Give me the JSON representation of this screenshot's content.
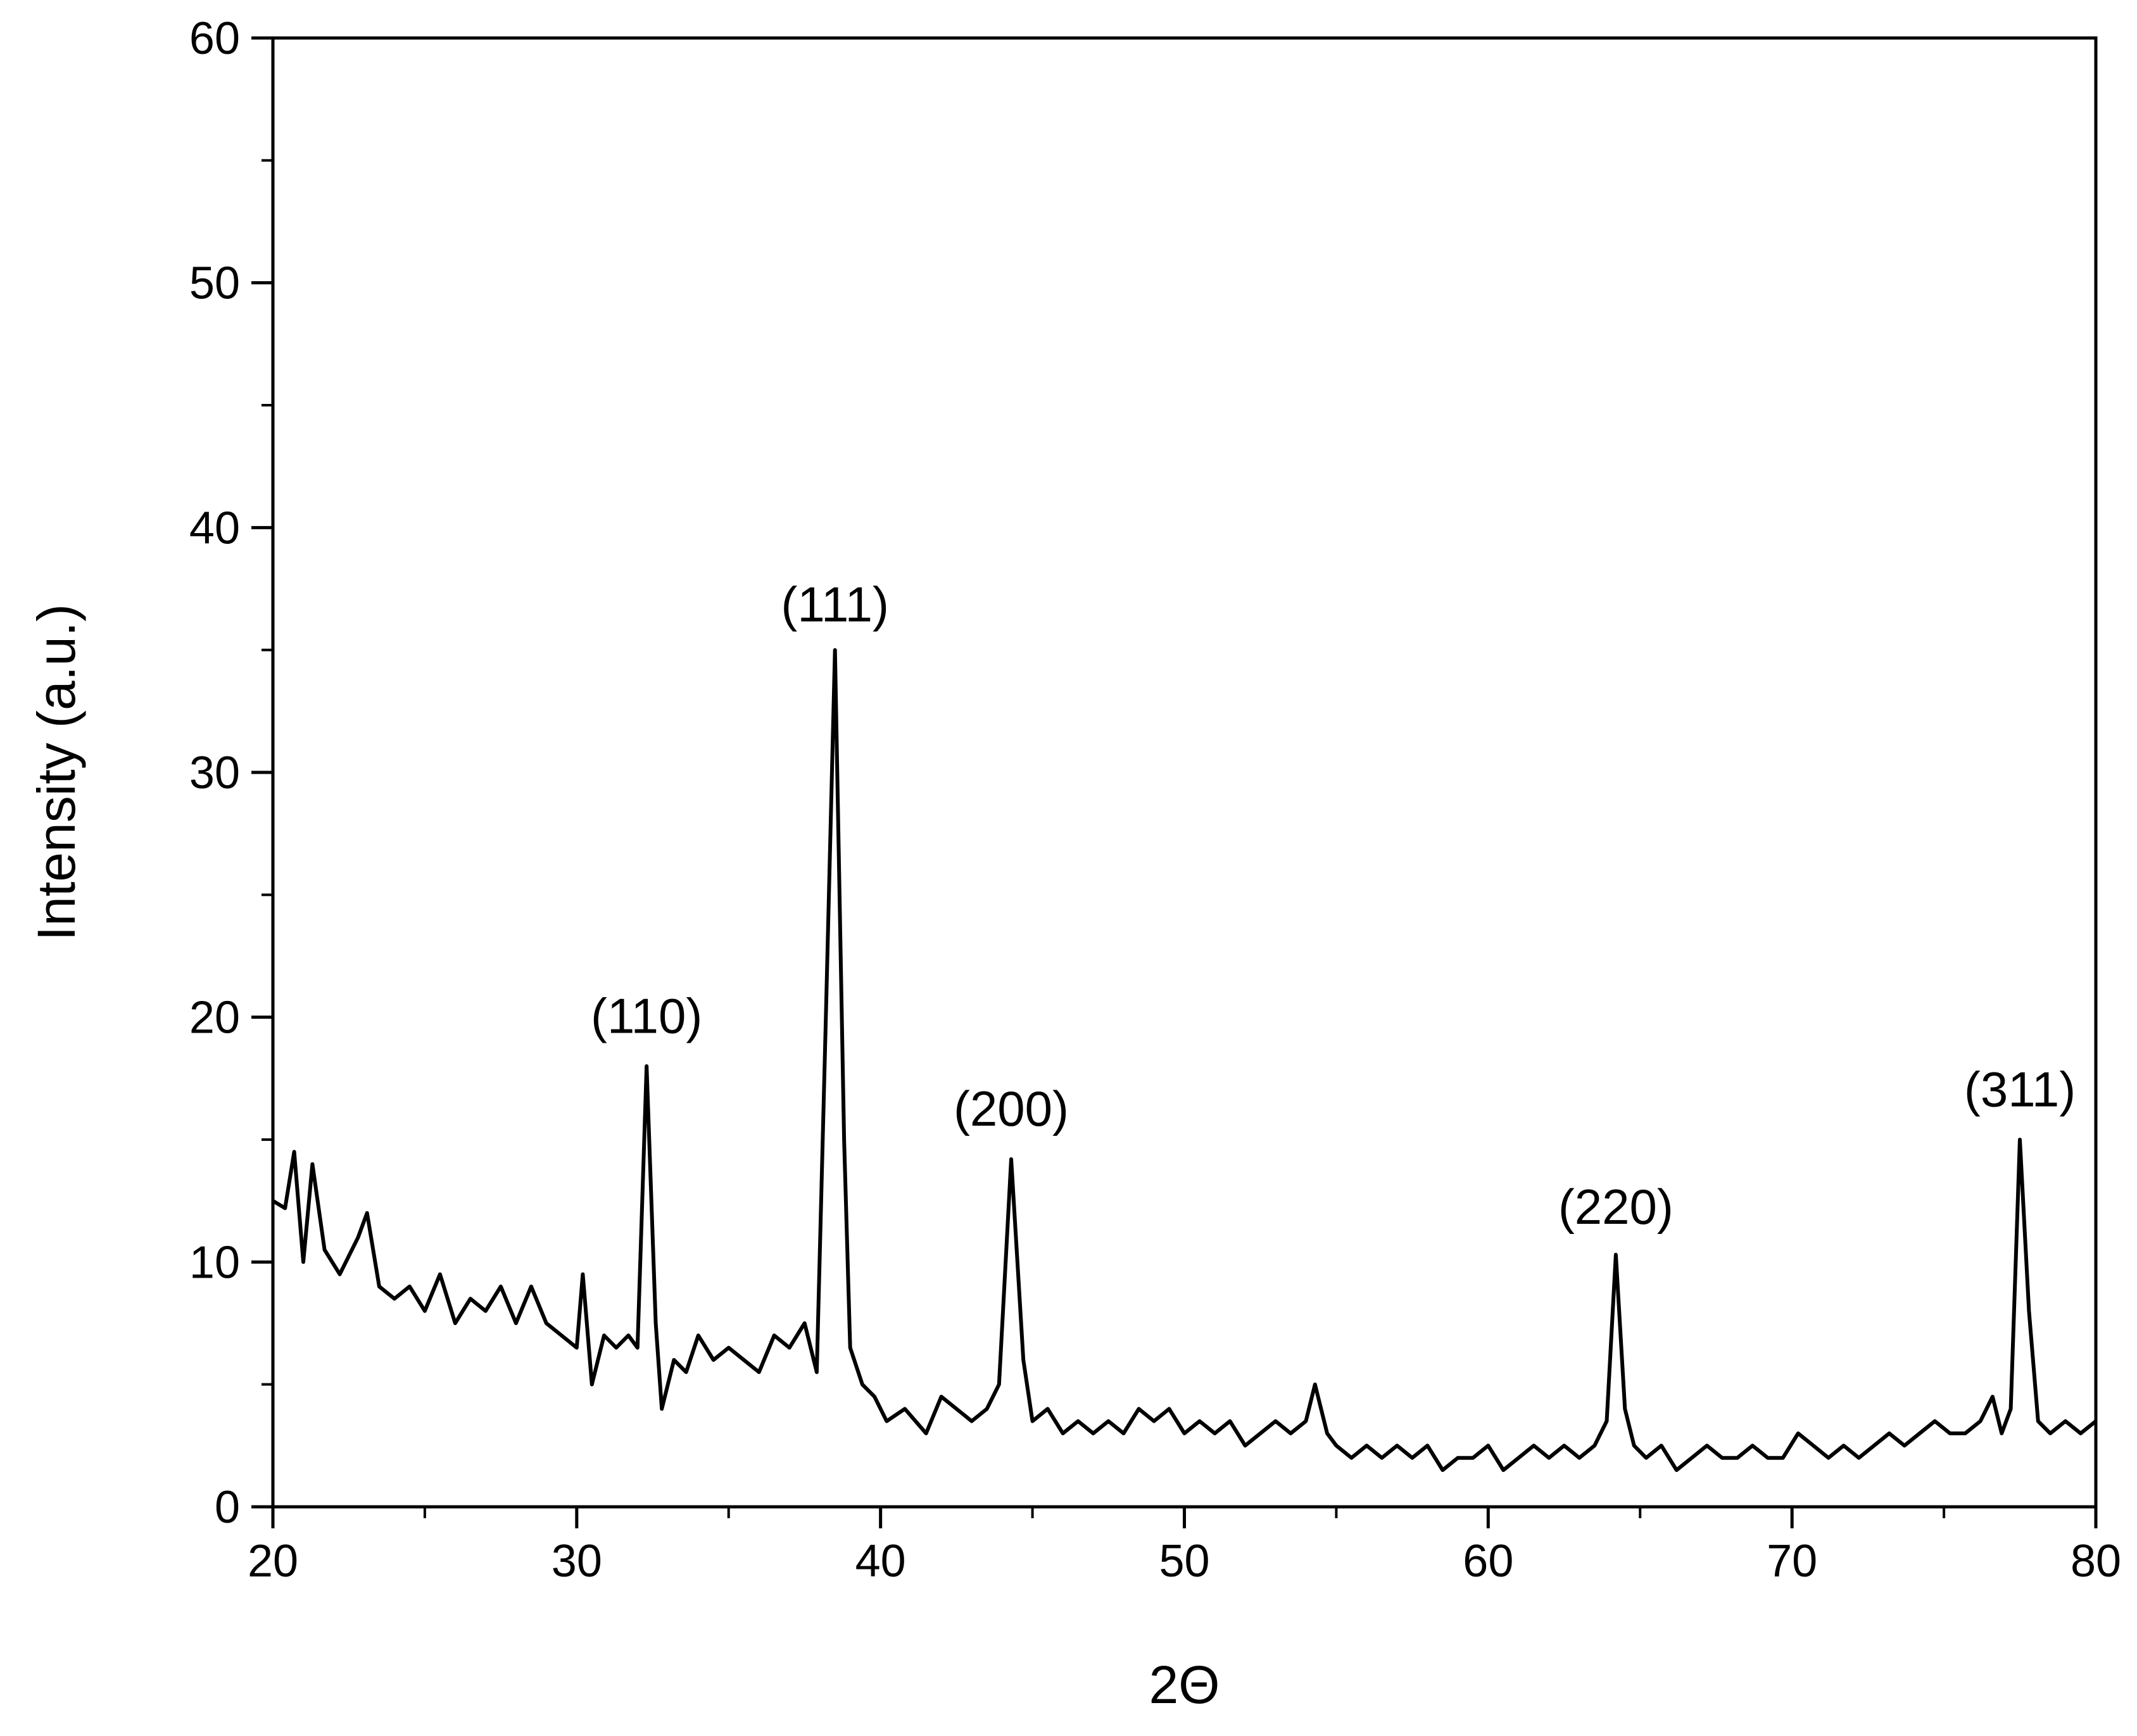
{
  "chart_data": {
    "type": "line",
    "title": "",
    "xlabel": "2Θ",
    "ylabel": "Intensity (a.u.)",
    "xlim": [
      20,
      80
    ],
    "ylim": [
      0,
      60
    ],
    "x_ticks": [
      "20",
      "30",
      "40",
      "50",
      "60",
      "70",
      "80"
    ],
    "y_ticks": [
      "0",
      "10",
      "20",
      "30",
      "40",
      "50",
      "60"
    ],
    "grid": false,
    "legend": "none",
    "line_color": "#000000",
    "series": [
      {
        "x": [
          20,
          20.4,
          20.7,
          21.0,
          21.3,
          21.7,
          22.2,
          22.8,
          23.1,
          23.5,
          24.0,
          24.5,
          25.0,
          25.5,
          26.0,
          26.5,
          27.0,
          27.5,
          28.0,
          28.5,
          29.0,
          29.5,
          30.0,
          30.2,
          30.5,
          30.9,
          31.3,
          31.7,
          32.0,
          32.3,
          32.6,
          32.8,
          33.2,
          33.6,
          34.0,
          34.5,
          35.0,
          35.5,
          36.0,
          36.5,
          37.0,
          37.5,
          37.9,
          38.2,
          38.5,
          38.8,
          39.0,
          39.4,
          39.8,
          40.2,
          40.8,
          41.5,
          42.0,
          42.5,
          43.0,
          43.5,
          43.9,
          44.3,
          44.7,
          45.0,
          45.5,
          46.0,
          46.5,
          47.0,
          47.5,
          48.0,
          48.5,
          49.0,
          49.5,
          50.0,
          50.5,
          51.0,
          51.5,
          52.0,
          52.5,
          53.0,
          53.5,
          54.0,
          54.3,
          54.7,
          55.0,
          55.5,
          56.0,
          56.5,
          57.0,
          57.5,
          58.0,
          58.5,
          59.0,
          59.5,
          60.0,
          60.5,
          61.0,
          61.5,
          62.0,
          62.5,
          63.0,
          63.5,
          63.9,
          64.2,
          64.5,
          64.8,
          65.2,
          65.7,
          66.2,
          66.7,
          67.2,
          67.7,
          68.2,
          68.7,
          69.2,
          69.7,
          70.2,
          70.7,
          71.2,
          71.7,
          72.2,
          72.7,
          73.2,
          73.7,
          74.2,
          74.7,
          75.2,
          75.7,
          76.2,
          76.6,
          76.9,
          77.2,
          77.5,
          77.8,
          78.1,
          78.5,
          79.0,
          79.5,
          80.0
        ],
        "y": [
          12.5,
          12.2,
          14.5,
          10.0,
          14.0,
          10.5,
          9.5,
          11.0,
          12.0,
          9.0,
          8.5,
          9.0,
          8.0,
          9.5,
          7.5,
          8.5,
          8.0,
          9.0,
          7.5,
          9.0,
          7.5,
          7.0,
          6.5,
          9.5,
          5.0,
          7.0,
          6.5,
          7.0,
          6.5,
          18.0,
          7.5,
          4.0,
          6.0,
          5.5,
          7.0,
          6.0,
          6.5,
          6.0,
          5.5,
          7.0,
          6.5,
          7.5,
          5.5,
          20.0,
          35.0,
          15.0,
          6.5,
          5.0,
          4.5,
          3.5,
          4.0,
          3.0,
          4.5,
          4.0,
          3.5,
          4.0,
          5.0,
          14.2,
          6.0,
          3.5,
          4.0,
          3.0,
          3.5,
          3.0,
          3.5,
          3.0,
          4.0,
          3.5,
          4.0,
          3.0,
          3.5,
          3.0,
          3.5,
          2.5,
          3.0,
          3.5,
          3.0,
          3.5,
          5.0,
          3.0,
          2.5,
          2.0,
          2.5,
          2.0,
          2.5,
          2.0,
          2.5,
          1.5,
          2.0,
          2.0,
          2.5,
          1.5,
          2.0,
          2.5,
          2.0,
          2.5,
          2.0,
          2.5,
          3.5,
          10.3,
          4.0,
          2.5,
          2.0,
          2.5,
          1.5,
          2.0,
          2.5,
          2.0,
          2.0,
          2.5,
          2.0,
          2.0,
          3.0,
          2.5,
          2.0,
          2.5,
          2.0,
          2.5,
          3.0,
          2.5,
          3.0,
          3.5,
          3.0,
          3.0,
          3.5,
          4.5,
          3.0,
          4.0,
          15.0,
          8.0,
          3.5,
          3.0,
          3.5,
          3.0,
          3.5
        ]
      }
    ],
    "annotations": [
      {
        "text": "(110)",
        "x": 32.3,
        "y": 18.2
      },
      {
        "text": "(111)",
        "x": 38.5,
        "y": 35.0
      },
      {
        "text": "(200)",
        "x": 44.3,
        "y": 14.4
      },
      {
        "text": "(220)",
        "x": 64.2,
        "y": 10.4
      },
      {
        "text": "(311)",
        "x": 77.5,
        "y": 15.2
      }
    ]
  }
}
